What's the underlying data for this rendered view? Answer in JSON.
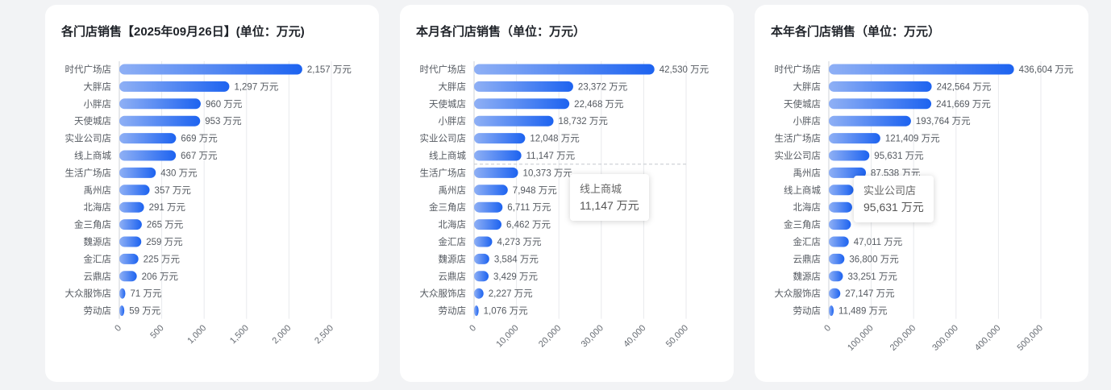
{
  "chart_data": [
    {
      "type": "bar",
      "orientation": "horizontal",
      "title": "各门店销售【2025年09月26日】(单位：万元)",
      "categories": [
        "时代广场店",
        "大胖店",
        "小胖店",
        "天使城店",
        "实业公司店",
        "线上商城",
        "生活广场店",
        "禹州店",
        "北海店",
        "金三角店",
        "魏源店",
        "金汇店",
        "云鼎店",
        "大众服饰店",
        "劳动店"
      ],
      "values": [
        2157,
        1297,
        960,
        953,
        669,
        667,
        430,
        357,
        291,
        265,
        259,
        225,
        206,
        71,
        59
      ],
      "value_labels": [
        "2,157 万元",
        "1,297 万元",
        "960 万元",
        "953 万元",
        "669 万元",
        "667 万元",
        "430 万元",
        "357 万元",
        "291 万元",
        "265 万元",
        "259 万元",
        "225 万元",
        "206 万元",
        "71 万元",
        "59 万元"
      ],
      "xlim": [
        0,
        2500
      ],
      "x_ticks": [
        0,
        500,
        1000,
        1500,
        2000,
        2500
      ],
      "x_tick_labels": [
        "0",
        "500",
        "1,000",
        "1,500",
        "2,000",
        "2,500"
      ],
      "grid": true,
      "bar_color_start": "#8fb0f5",
      "bar_color_end": "#1d63f0"
    },
    {
      "type": "bar",
      "orientation": "horizontal",
      "title": "本月各门店销售（单位：万元）",
      "categories": [
        "时代广场店",
        "大胖店",
        "天使城店",
        "小胖店",
        "实业公司店",
        "线上商城",
        "生活广场店",
        "禹州店",
        "金三角店",
        "北海店",
        "金汇店",
        "魏源店",
        "云鼎店",
        "大众服饰店",
        "劳动店"
      ],
      "values": [
        42530,
        23372,
        22468,
        18732,
        12048,
        11147,
        10373,
        7948,
        6711,
        6462,
        4273,
        3584,
        3429,
        2227,
        1076
      ],
      "value_labels": [
        "42,530 万元",
        "23,372 万元",
        "22,468 万元",
        "18,732 万元",
        "12,048 万元",
        "11,147 万元",
        "10,373 万元",
        "7,948 万元",
        "6,711 万元",
        "6,462 万元",
        "4,273 万元",
        "3,584 万元",
        "3,429 万元",
        "2,227 万元",
        "1,076 万元"
      ],
      "xlim": [
        0,
        50000
      ],
      "x_ticks": [
        0,
        10000,
        20000,
        30000,
        40000,
        50000
      ],
      "x_tick_labels": [
        "0",
        "10,000",
        "20,000",
        "30,000",
        "40,000",
        "50,000"
      ],
      "grid": true,
      "hover_index": 5,
      "tooltip": {
        "label": "线上商城",
        "value": "11,147 万元"
      }
    },
    {
      "type": "bar",
      "orientation": "horizontal",
      "title": "本年各门店销售（单位：万元）",
      "categories": [
        "时代广场店",
        "大胖店",
        "天使城店",
        "小胖店",
        "生活广场店",
        "实业公司店",
        "禹州店",
        "线上商城",
        "北海店",
        "金三角店",
        "金汇店",
        "云鼎店",
        "魏源店",
        "大众服饰店",
        "劳动店"
      ],
      "values": [
        436604,
        242564,
        241669,
        193764,
        121409,
        95631,
        87538,
        58000,
        55000,
        52000,
        47011,
        36800,
        33251,
        27147,
        11489
      ],
      "value_labels": [
        "436,604 万元",
        "242,564 万元",
        "241,669 万元",
        "193,764 万元",
        "121,409 万元",
        "95,631 万元",
        "87,538 万元",
        "",
        "",
        "",
        "47,011 万元",
        "36,800 万元",
        "33,251 万元",
        "27,147 万元",
        "11,489 万元"
      ],
      "xlim": [
        0,
        500000
      ],
      "x_ticks": [
        0,
        100000,
        200000,
        300000,
        400000,
        500000
      ],
      "x_tick_labels": [
        "0",
        "100,000",
        "200,000",
        "300,000",
        "400,000",
        "500,000"
      ],
      "grid": true,
      "tooltip": {
        "label": "实业公司店",
        "value": "95,631 万元"
      }
    }
  ]
}
